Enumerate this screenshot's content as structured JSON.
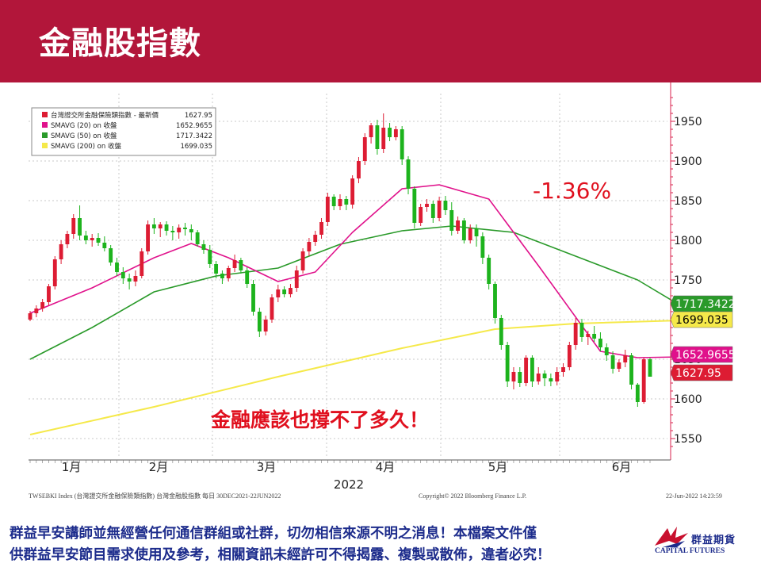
{
  "slide": {
    "title": "金融股指數",
    "disclaimer_line1": "群益早安講師並無經營任何通信群組或社群，切勿相信來源不明之消息！本檔案文件僅",
    "disclaimer_line2": "供群益早安節目需求使用及參考，相關資訊未經許可不得揭露、複製或散佈，違者必究！",
    "logo": {
      "cn": "群益期貨",
      "en": "CAPITAL FUTURES"
    }
  },
  "colors": {
    "header": "#b2163a",
    "up": "#dd1c33",
    "down": "#1db31d",
    "sma20": "#e0118b",
    "sma50": "#2a9a2a",
    "sma200": "#f5e94a",
    "annotation": "#e0101e"
  },
  "chart_data": {
    "type": "candlestick",
    "ylim": [
      1525,
      1985
    ],
    "yticks": [
      1550,
      1600,
      1650,
      1700,
      1750,
      1800,
      1850,
      1900,
      1950
    ],
    "x_labels": [
      "1月",
      "2月",
      "3月",
      "4月",
      "5月",
      "6月"
    ],
    "year_label": "2022",
    "legend": [
      {
        "label": "台灣證交所金融保險類指數 - 最新價",
        "value": "1627.95",
        "color_key": "up"
      },
      {
        "label": "SMAVG (20)  on 收盤",
        "value": "1652.9655",
        "color_key": "sma20"
      },
      {
        "label": "SMAVG (50)  on 收盤",
        "value": "1717.3422",
        "color_key": "sma50"
      },
      {
        "label": "SMAVG (200)  on 收盤",
        "value": "1699.035",
        "color_key": "sma200"
      }
    ],
    "last_value_tags": [
      {
        "value": "1717.3422",
        "y": 1717.3422,
        "color_key": "sma50",
        "text_color": "#ffffff"
      },
      {
        "value": "1699.035",
        "y": 1699.035,
        "color_key": "sma200",
        "text_color": "#000000"
      },
      {
        "value": "1652.9655",
        "y": 1652.9655,
        "color_key": "sma20",
        "text_color": "#ffffff"
      },
      {
        "value": "1627.95",
        "y": 1627.95,
        "color_key": "up",
        "text_color": "#ffffff"
      }
    ],
    "annotations": {
      "change": "-1.36%",
      "comment": "金融應該也撐不了多久！"
    },
    "footer": {
      "left": "TWSEBKI Index (台灣證交所金融保險類指數) 台灣金融股指數  每日  30DEC2021-22JUN2022",
      "center": "Copyright© 2022 Bloomberg Finance L.P.",
      "right": "22-Jun-2022  14:23:59"
    },
    "candles": [
      [
        1700,
        1711,
        1698,
        1708
      ],
      [
        1708,
        1718,
        1703,
        1714
      ],
      [
        1714,
        1726,
        1710,
        1722
      ],
      [
        1722,
        1745,
        1718,
        1742
      ],
      [
        1742,
        1780,
        1738,
        1776
      ],
      [
        1776,
        1800,
        1770,
        1795
      ],
      [
        1795,
        1812,
        1790,
        1808
      ],
      [
        1808,
        1833,
        1802,
        1828
      ],
      [
        1828,
        1844,
        1800,
        1806
      ],
      [
        1806,
        1812,
        1795,
        1800
      ],
      [
        1800,
        1808,
        1792,
        1803
      ],
      [
        1803,
        1809,
        1793,
        1797
      ],
      [
        1797,
        1805,
        1786,
        1790
      ],
      [
        1790,
        1794,
        1768,
        1772
      ],
      [
        1772,
        1778,
        1755,
        1760
      ],
      [
        1760,
        1766,
        1745,
        1752
      ],
      [
        1752,
        1758,
        1738,
        1748
      ],
      [
        1748,
        1762,
        1742,
        1755
      ],
      [
        1755,
        1790,
        1752,
        1786
      ],
      [
        1786,
        1825,
        1782,
        1820
      ],
      [
        1820,
        1828,
        1808,
        1815
      ],
      [
        1815,
        1823,
        1804,
        1820
      ],
      [
        1820,
        1824,
        1806,
        1812
      ],
      [
        1812,
        1818,
        1800,
        1810
      ],
      [
        1810,
        1820,
        1802,
        1816
      ],
      [
        1816,
        1822,
        1806,
        1814
      ],
      [
        1814,
        1820,
        1800,
        1810
      ],
      [
        1810,
        1813,
        1792,
        1795
      ],
      [
        1795,
        1800,
        1783,
        1788
      ],
      [
        1788,
        1794,
        1765,
        1770
      ],
      [
        1770,
        1774,
        1752,
        1758
      ],
      [
        1758,
        1762,
        1745,
        1752
      ],
      [
        1752,
        1768,
        1748,
        1765
      ],
      [
        1765,
        1782,
        1760,
        1775
      ],
      [
        1775,
        1778,
        1758,
        1762
      ],
      [
        1762,
        1766,
        1740,
        1745
      ],
      [
        1745,
        1750,
        1705,
        1710
      ],
      [
        1710,
        1715,
        1678,
        1685
      ],
      [
        1685,
        1705,
        1680,
        1700
      ],
      [
        1700,
        1732,
        1696,
        1728
      ],
      [
        1728,
        1744,
        1722,
        1738
      ],
      [
        1738,
        1742,
        1728,
        1732
      ],
      [
        1732,
        1745,
        1728,
        1740
      ],
      [
        1740,
        1768,
        1735,
        1762
      ],
      [
        1762,
        1790,
        1758,
        1786
      ],
      [
        1786,
        1803,
        1780,
        1798
      ],
      [
        1798,
        1812,
        1793,
        1807
      ],
      [
        1807,
        1828,
        1802,
        1823
      ],
      [
        1823,
        1860,
        1818,
        1855
      ],
      [
        1855,
        1858,
        1838,
        1843
      ],
      [
        1843,
        1858,
        1838,
        1852
      ],
      [
        1852,
        1856,
        1838,
        1845
      ],
      [
        1845,
        1882,
        1840,
        1878
      ],
      [
        1878,
        1905,
        1872,
        1900
      ],
      [
        1900,
        1935,
        1895,
        1930
      ],
      [
        1930,
        1948,
        1922,
        1945
      ],
      [
        1945,
        1952,
        1908,
        1915
      ],
      [
        1915,
        1960,
        1910,
        1942
      ],
      [
        1942,
        1948,
        1925,
        1930
      ],
      [
        1930,
        1944,
        1926,
        1940
      ],
      [
        1940,
        1944,
        1895,
        1902
      ],
      [
        1902,
        1906,
        1858,
        1865
      ],
      [
        1865,
        1868,
        1815,
        1822
      ],
      [
        1822,
        1846,
        1818,
        1842
      ],
      [
        1842,
        1852,
        1836,
        1846
      ],
      [
        1846,
        1850,
        1822,
        1828
      ],
      [
        1828,
        1855,
        1824,
        1850
      ],
      [
        1850,
        1856,
        1832,
        1838
      ],
      [
        1838,
        1848,
        1806,
        1812
      ],
      [
        1812,
        1830,
        1808,
        1825
      ],
      [
        1825,
        1828,
        1796,
        1800
      ],
      [
        1800,
        1820,
        1796,
        1815
      ],
      [
        1815,
        1820,
        1792,
        1805
      ],
      [
        1805,
        1810,
        1770,
        1778
      ],
      [
        1778,
        1782,
        1738,
        1745
      ],
      [
        1745,
        1748,
        1695,
        1702
      ],
      [
        1702,
        1706,
        1662,
        1668
      ],
      [
        1668,
        1672,
        1615,
        1622
      ],
      [
        1622,
        1640,
        1612,
        1634
      ],
      [
        1634,
        1640,
        1615,
        1620
      ],
      [
        1620,
        1655,
        1616,
        1652
      ],
      [
        1652,
        1655,
        1615,
        1622
      ],
      [
        1622,
        1640,
        1618,
        1632
      ],
      [
        1632,
        1636,
        1616,
        1626
      ],
      [
        1626,
        1632,
        1616,
        1622
      ],
      [
        1622,
        1640,
        1617,
        1634
      ],
      [
        1634,
        1645,
        1628,
        1640
      ],
      [
        1640,
        1672,
        1636,
        1668
      ],
      [
        1668,
        1702,
        1662,
        1696
      ],
      [
        1696,
        1701,
        1672,
        1678
      ],
      [
        1678,
        1686,
        1668,
        1682
      ],
      [
        1682,
        1692,
        1672,
        1676
      ],
      [
        1676,
        1684,
        1660,
        1665
      ],
      [
        1665,
        1670,
        1648,
        1655
      ],
      [
        1655,
        1660,
        1632,
        1638
      ],
      [
        1638,
        1650,
        1634,
        1646
      ],
      [
        1646,
        1662,
        1640,
        1655
      ],
      [
        1655,
        1658,
        1612,
        1618
      ],
      [
        1618,
        1620,
        1590,
        1596
      ],
      [
        1596,
        1652,
        1594,
        1650
      ],
      [
        1650,
        1652,
        1628,
        1628
      ]
    ],
    "sma20": [
      [
        0,
        1708
      ],
      [
        10,
        1740
      ],
      [
        20,
        1778
      ],
      [
        26,
        1796
      ],
      [
        32,
        1778
      ],
      [
        40,
        1748
      ],
      [
        46,
        1760
      ],
      [
        52,
        1810
      ],
      [
        60,
        1865
      ],
      [
        66,
        1870
      ],
      [
        74,
        1852
      ],
      [
        82,
        1768
      ],
      [
        92,
        1660
      ],
      [
        98,
        1652
      ],
      [
        105,
        1653
      ]
    ],
    "sma50": [
      [
        0,
        1650
      ],
      [
        10,
        1690
      ],
      [
        20,
        1735
      ],
      [
        30,
        1755
      ],
      [
        40,
        1765
      ],
      [
        50,
        1795
      ],
      [
        60,
        1812
      ],
      [
        68,
        1818
      ],
      [
        78,
        1810
      ],
      [
        88,
        1780
      ],
      [
        98,
        1750
      ],
      [
        105,
        1717.34
      ]
    ],
    "sma200": [
      [
        0,
        1555
      ],
      [
        20,
        1590
      ],
      [
        40,
        1628
      ],
      [
        60,
        1664
      ],
      [
        75,
        1688
      ],
      [
        88,
        1695
      ],
      [
        105,
        1699.04
      ]
    ]
  }
}
